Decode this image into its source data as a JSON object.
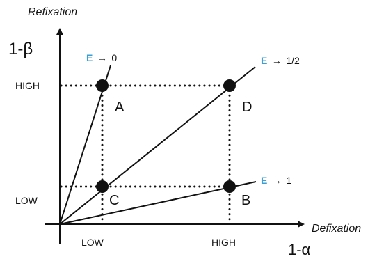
{
  "axes": {
    "y_title": "Refixation",
    "y_symbol": "1-β",
    "x_title": "Defixation",
    "x_symbol": "1-α",
    "y_ticks": [
      "HIGH",
      "LOW"
    ],
    "x_ticks": [
      "LOW",
      "HIGH"
    ]
  },
  "rays": [
    {
      "epsilon": "E",
      "arrow": "→",
      "value": "0"
    },
    {
      "epsilon": "E",
      "arrow": "→",
      "value": "1/2"
    },
    {
      "epsilon": "E",
      "arrow": "→",
      "value": "1"
    }
  ],
  "points": [
    {
      "label": "A",
      "x": "LOW",
      "y": "HIGH"
    },
    {
      "label": "D",
      "x": "HIGH",
      "y": "HIGH"
    },
    {
      "label": "C",
      "x": "LOW",
      "y": "LOW"
    },
    {
      "label": "B",
      "x": "HIGH",
      "y": "LOW"
    }
  ],
  "colors": {
    "ink": "#111111",
    "epsilon": "#3a9fd6"
  }
}
